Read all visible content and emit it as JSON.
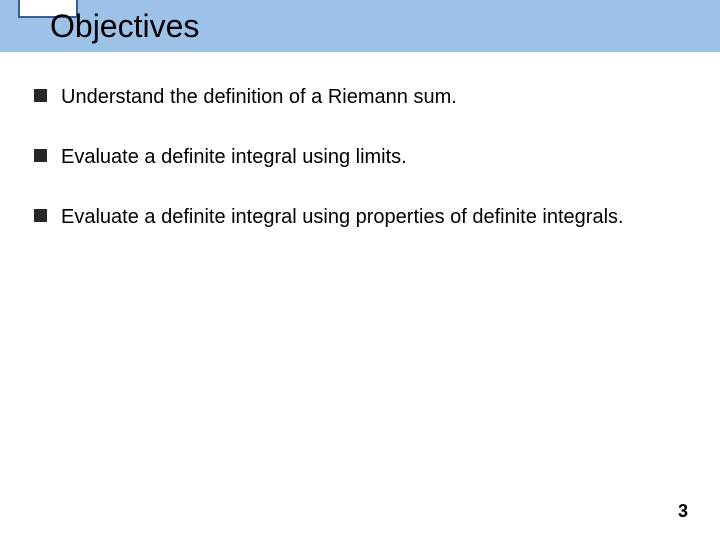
{
  "slide": {
    "title": "Objectives",
    "bullets": [
      "Understand the definition of a Riemann sum.",
      "Evaluate a definite integral using limits.",
      "Evaluate a definite integral using properties of definite integrals."
    ],
    "pageNumber": "3"
  },
  "style": {
    "titleBarColor": "#9cc2e8",
    "titleBoxBorderColor": "#376092",
    "titleFontSize": 32,
    "bulletFontSize": 20,
    "bulletSquareColor": "#272727",
    "bulletSquareSize": 13,
    "backgroundColor": "#ffffff",
    "textColor": "#000000"
  }
}
